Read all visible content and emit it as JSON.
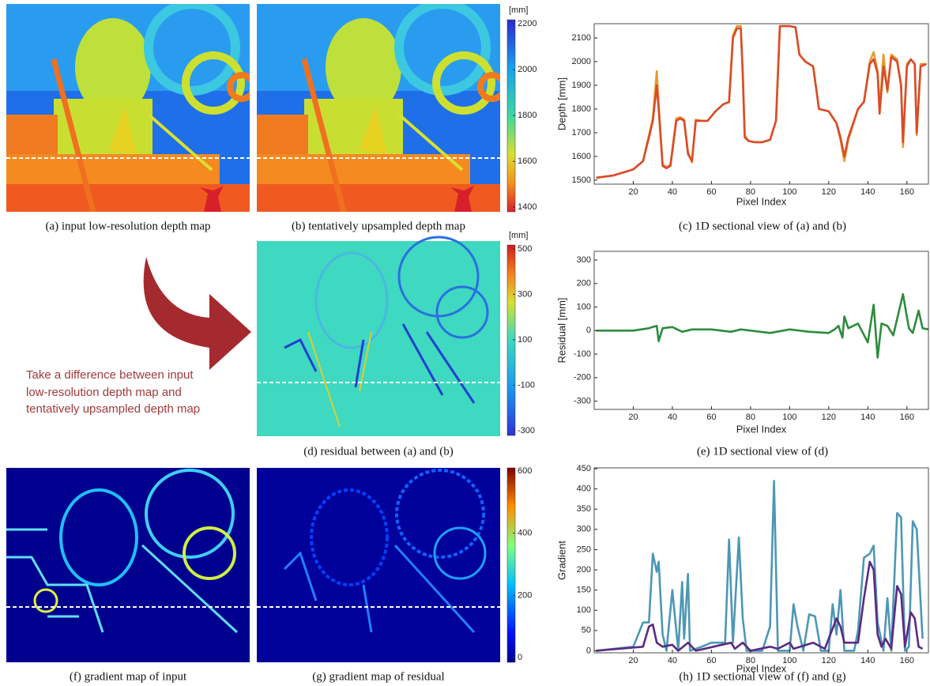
{
  "chart_data": [
    {
      "type": "line",
      "caption": "(c) 1D sectional view of (a) and (b)",
      "xlabel": "Pixel Index",
      "ylabel": "Depth [mm]",
      "xlim": [
        0,
        171
      ],
      "ylim": [
        1483,
        2160
      ],
      "xticks": [
        20,
        40,
        60,
        80,
        100,
        120,
        140,
        160
      ],
      "yticks": [
        1500,
        1600,
        1700,
        1800,
        1900,
        2000,
        2100
      ],
      "series": [
        {
          "color": "#e59b2f",
          "x": [
            1,
            10,
            20,
            25,
            28,
            30,
            32,
            33,
            35,
            37,
            39,
            42,
            44,
            46,
            48,
            50,
            52,
            55,
            58,
            62,
            66,
            69,
            71,
            73,
            75,
            76,
            77,
            79,
            82,
            86,
            90,
            93,
            95,
            100,
            103,
            105,
            108,
            112,
            115,
            120,
            124,
            126,
            128,
            130,
            135,
            138,
            141,
            143,
            145,
            146,
            148,
            150,
            152,
            155,
            157,
            158,
            160,
            162,
            164,
            165,
            167,
            170
          ],
          "values": [
            1510,
            1520,
            1545,
            1580,
            1690,
            1760,
            1960,
            1820,
            1565,
            1555,
            1565,
            1760,
            1765,
            1755,
            1620,
            1575,
            1755,
            1750,
            1750,
            1790,
            1820,
            1830,
            2110,
            2150,
            2150,
            1960,
            1690,
            1665,
            1660,
            1660,
            1670,
            1750,
            2150,
            2150,
            2145,
            2030,
            2000,
            1980,
            1800,
            1790,
            1740,
            1670,
            1580,
            1670,
            1800,
            1830,
            2000,
            2040,
            1960,
            1800,
            2030,
            1870,
            2030,
            2010,
            1900,
            1640,
            1990,
            2010,
            1990,
            1690,
            1990,
            1990
          ]
        },
        {
          "color": "#d94b2a",
          "x": [
            1,
            10,
            20,
            25,
            28,
            30,
            32,
            33,
            35,
            37,
            39,
            42,
            44,
            46,
            48,
            50,
            52,
            55,
            58,
            62,
            66,
            69,
            71,
            73,
            75,
            76,
            77,
            79,
            82,
            86,
            90,
            93,
            95,
            100,
            103,
            105,
            108,
            112,
            115,
            120,
            124,
            126,
            128,
            130,
            135,
            138,
            141,
            143,
            145,
            146,
            148,
            150,
            152,
            155,
            157,
            158,
            160,
            162,
            164,
            165,
            167,
            170
          ],
          "values": [
            1510,
            1520,
            1545,
            1580,
            1680,
            1750,
            1900,
            1800,
            1560,
            1550,
            1560,
            1750,
            1760,
            1750,
            1610,
            1580,
            1750,
            1750,
            1750,
            1790,
            1820,
            1830,
            2100,
            2140,
            2140,
            1950,
            1680,
            1665,
            1660,
            1660,
            1670,
            1750,
            2150,
            2150,
            2145,
            2030,
            2000,
            1980,
            1800,
            1790,
            1740,
            1680,
            1600,
            1680,
            1800,
            1830,
            1990,
            2010,
            1950,
            1780,
            1980,
            1880,
            2020,
            2000,
            1900,
            1660,
            1980,
            2010,
            1990,
            1700,
            1980,
            1990
          ]
        }
      ]
    },
    {
      "type": "line",
      "caption": "(e) 1D sectional view of (d)",
      "xlabel": "Pixel Index",
      "ylabel": "Residual [mm]",
      "xlim": [
        0,
        171
      ],
      "ylim": [
        -335,
        337
      ],
      "xticks": [
        20,
        40,
        60,
        80,
        100,
        120,
        140,
        160
      ],
      "yticks": [
        -300,
        -200,
        -100,
        0,
        100,
        200,
        300
      ],
      "series": [
        {
          "color": "#2e8b3e",
          "x": [
            1,
            20,
            28,
            30,
            32,
            33,
            35,
            40,
            45,
            50,
            60,
            70,
            75,
            90,
            100,
            110,
            120,
            123,
            125,
            127,
            128,
            130,
            135,
            140,
            143,
            145,
            147,
            150,
            153,
            158,
            161,
            163,
            166,
            168,
            171
          ],
          "values": [
            0,
            0,
            10,
            15,
            20,
            -45,
            10,
            15,
            -5,
            5,
            5,
            -5,
            5,
            -10,
            5,
            -5,
            -10,
            5,
            20,
            -30,
            60,
            10,
            30,
            -50,
            110,
            -115,
            30,
            20,
            -20,
            155,
            10,
            -10,
            85,
            10,
            5
          ]
        }
      ]
    },
    {
      "type": "line",
      "caption": "(h) 1D sectional view of (f) and (g)",
      "xlabel": "Pixel Index",
      "ylabel": "Gradient",
      "xlim": [
        0,
        171
      ],
      "ylim": [
        -5,
        452
      ],
      "xticks": [
        20,
        40,
        60,
        80,
        100,
        120,
        140,
        160
      ],
      "yticks": [
        0,
        50,
        100,
        150,
        200,
        250,
        300,
        350,
        400,
        450
      ],
      "series": [
        {
          "color": "#4c97b5",
          "x": [
            1,
            20,
            25,
            28,
            30,
            32,
            33,
            35,
            37,
            40,
            43,
            45,
            46,
            48,
            49,
            55,
            60,
            67,
            69,
            71,
            74,
            76,
            78,
            86,
            90,
            92,
            94,
            100,
            102,
            104,
            107,
            110,
            113,
            116,
            120,
            122,
            124,
            126,
            128,
            133,
            135,
            138,
            141,
            143,
            145,
            148,
            150,
            152,
            155,
            157,
            159,
            161,
            163,
            165,
            168
          ],
          "values": [
            0,
            10,
            70,
            70,
            240,
            195,
            220,
            40,
            0,
            150,
            0,
            170,
            30,
            190,
            0,
            10,
            20,
            20,
            275,
            20,
            280,
            80,
            0,
            0,
            60,
            420,
            0,
            0,
            115,
            60,
            0,
            90,
            85,
            0,
            0,
            115,
            40,
            150,
            0,
            0,
            50,
            230,
            240,
            260,
            70,
            0,
            130,
            0,
            340,
            330,
            0,
            10,
            320,
            300,
            30
          ]
        },
        {
          "color": "#5b2a83",
          "x": [
            1,
            25,
            28,
            30,
            32,
            35,
            40,
            43,
            48,
            52,
            70,
            72,
            76,
            80,
            90,
            94,
            100,
            102,
            112,
            118,
            124,
            126,
            128,
            135,
            138,
            141,
            143,
            145,
            147,
            149,
            152,
            155,
            157,
            159,
            162,
            164,
            166,
            168
          ],
          "values": [
            0,
            10,
            60,
            65,
            20,
            10,
            15,
            0,
            20,
            0,
            20,
            5,
            20,
            0,
            10,
            5,
            20,
            5,
            20,
            5,
            80,
            60,
            20,
            20,
            130,
            220,
            200,
            40,
            10,
            30,
            5,
            160,
            140,
            10,
            95,
            80,
            10,
            5
          ]
        }
      ]
    }
  ],
  "panels": {
    "a": "(a) input low-resolution depth map",
    "b": "(b) tentatively upsampled depth map",
    "d": "(d) residual between (a) and (b)",
    "f": "(f) gradient map of input",
    "g": "(g) gradient map of residual"
  },
  "annotation": [
    "Take a difference between input",
    "low-resolution depth map and",
    "tentatively upsampled depth map"
  ],
  "colorbars": [
    {
      "unit": "[mm]",
      "lim": [
        1380,
        2218
      ],
      "ticks": [
        1400,
        1600,
        1800,
        2000,
        2200
      ]
    },
    {
      "unit": "[mm]",
      "lim": [
        -321,
        517
      ],
      "ticks": [
        -300,
        -100,
        100,
        300,
        500
      ]
    },
    {
      "lim": [
        -15,
        610
      ],
      "ticks": [
        0,
        200,
        400,
        600
      ]
    }
  ]
}
